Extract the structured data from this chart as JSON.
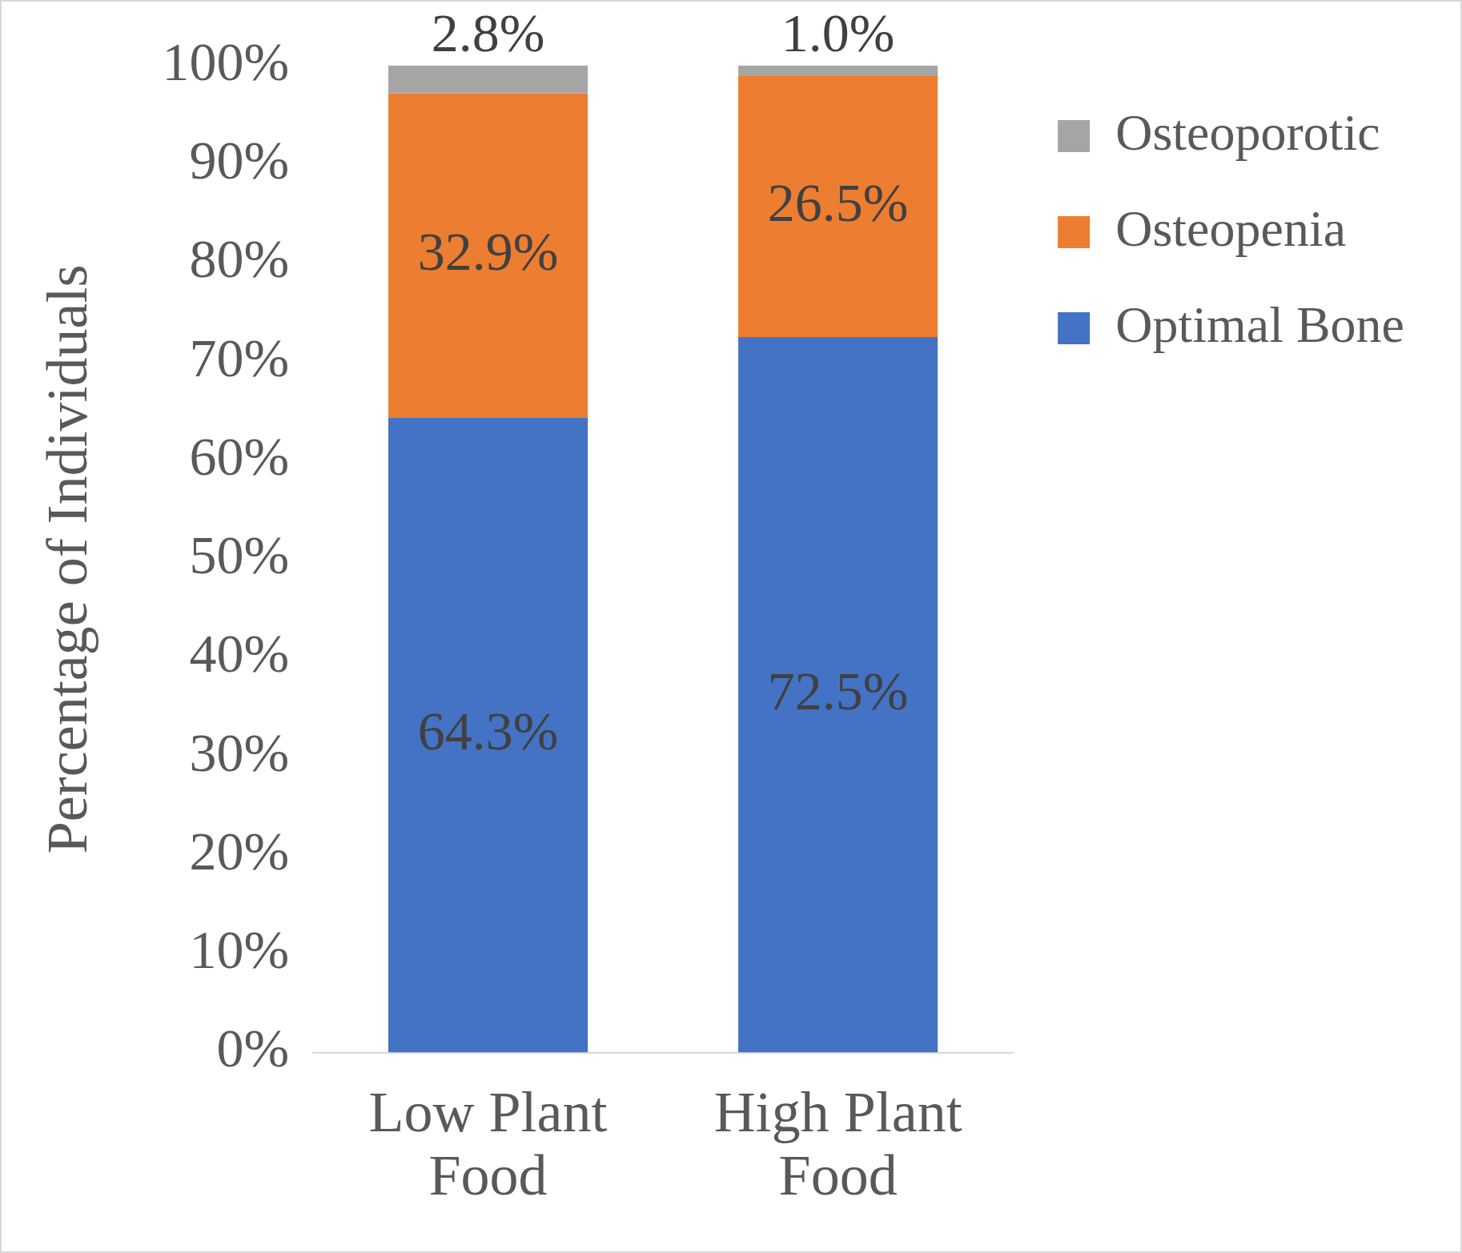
{
  "chart_data": {
    "type": "bar",
    "stacked": true,
    "ylabel": "Percentage of Individuals",
    "categories": [
      "Low Plant Food",
      "High Plant Food"
    ],
    "series": [
      {
        "name": "Optimal Bone",
        "color": "#4472c4",
        "values": [
          64.3,
          72.5
        ],
        "value_labels": [
          "64.3%",
          "72.5%"
        ]
      },
      {
        "name": "Osteopenia",
        "color": "#ed7d31",
        "values": [
          32.9,
          26.5
        ],
        "value_labels": [
          "32.9%",
          "26.5%"
        ]
      },
      {
        "name": "Osteoporotic",
        "color": "#a5a5a5",
        "values": [
          2.8,
          1.0
        ],
        "value_labels": [
          "2.8%",
          "1.0%"
        ]
      }
    ],
    "ylim": [
      0,
      100
    ],
    "yticks": [
      {
        "value": 0,
        "label": "0%"
      },
      {
        "value": 10,
        "label": "10%"
      },
      {
        "value": 20,
        "label": "20%"
      },
      {
        "value": 30,
        "label": "30%"
      },
      {
        "value": 40,
        "label": "40%"
      },
      {
        "value": 50,
        "label": "50%"
      },
      {
        "value": 60,
        "label": "60%"
      },
      {
        "value": 70,
        "label": "70%"
      },
      {
        "value": 80,
        "label": "80%"
      },
      {
        "value": 90,
        "label": "90%"
      },
      {
        "value": 100,
        "label": "100%"
      }
    ],
    "grid": false,
    "legend": "right"
  }
}
